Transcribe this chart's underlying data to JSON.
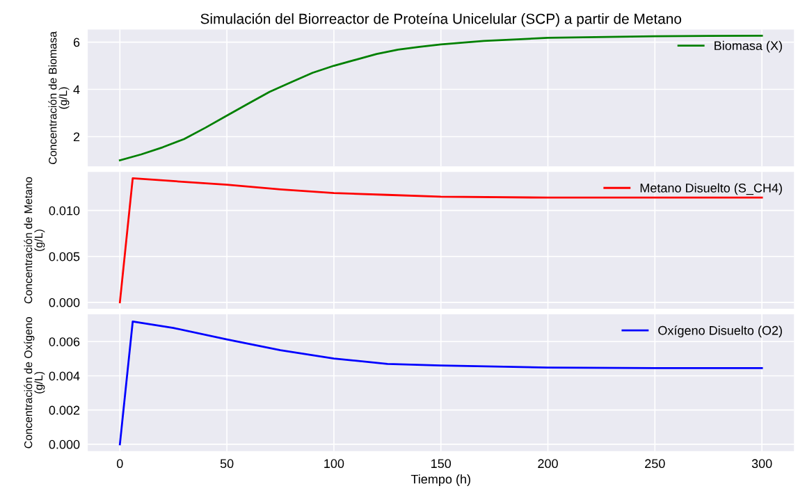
{
  "chart_data": [
    {
      "type": "line",
      "title": "Simulación del Biorreactor de Proteína Unicelular (SCP) a partir de Metano",
      "ylabel": "Concentración de Biomasa\n(g/L)",
      "x": [
        0,
        10,
        20,
        30,
        40,
        50,
        60,
        70,
        80,
        90,
        100,
        110,
        120,
        130,
        140,
        150,
        170,
        200,
        250,
        300
      ],
      "series": [
        {
          "name": "Biomasa (X)",
          "color": "#008000",
          "values": [
            1.0,
            1.25,
            1.55,
            1.9,
            2.38,
            2.89,
            3.4,
            3.9,
            4.3,
            4.7,
            5.0,
            5.25,
            5.5,
            5.68,
            5.8,
            5.9,
            6.05,
            6.18,
            6.25,
            6.27
          ]
        }
      ],
      "xlim": [
        -15,
        315
      ],
      "xticks": [
        0,
        50,
        100,
        150,
        200,
        250,
        300
      ],
      "ylim": [
        0.74,
        6.53
      ],
      "yticks": [
        2,
        4,
        6
      ],
      "tick_labels": "y",
      "grid": true,
      "legend": "top right"
    },
    {
      "type": "line",
      "ylabel": "Concentración de Metano\n(g/L)",
      "x": [
        0,
        6,
        25,
        50,
        75,
        100,
        125,
        150,
        200,
        250,
        300
      ],
      "series": [
        {
          "name": "Metano Disuelto (S_CH4)",
          "color": "#ff0000",
          "values": [
            0,
            0.0135,
            0.0132,
            0.0128,
            0.0123,
            0.0119,
            0.0117,
            0.0115,
            0.0114,
            0.0114,
            0.0114
          ]
        }
      ],
      "xlim": [
        -15,
        315
      ],
      "xticks": [
        0,
        50,
        100,
        150,
        200,
        250,
        300
      ],
      "ylim": [
        -0.0007,
        0.0142
      ],
      "yticks": [
        {
          "value": 0,
          "label": "0.000"
        },
        {
          "value": 0.005,
          "label": "0.005"
        },
        {
          "value": 0.01,
          "label": "0.010"
        }
      ],
      "tick_labels": "y",
      "grid": true,
      "legend": "top right"
    },
    {
      "type": "line",
      "ylabel": "Concentración de Oxígeno\n(g/L)",
      "xlabel": "Tiempo (h)",
      "x": [
        0,
        6,
        25,
        50,
        75,
        100,
        125,
        150,
        200,
        250,
        300
      ],
      "series": [
        {
          "name": "Oxígeno Disuelto (O2)",
          "color": "#0000ff",
          "values": [
            0,
            0.00717,
            0.0068,
            0.00613,
            0.0055,
            0.00501,
            0.0047,
            0.0046,
            0.00448,
            0.00445,
            0.00445
          ]
        }
      ],
      "xlim": [
        -15,
        315
      ],
      "xticks": [
        0,
        50,
        100,
        150,
        200,
        250,
        300
      ],
      "ylim": [
        -0.0004,
        0.0076
      ],
      "yticks": [
        {
          "value": 0,
          "label": "0.000"
        },
        {
          "value": 0.002,
          "label": "0.002"
        },
        {
          "value": 0.004,
          "label": "0.004"
        },
        {
          "value": 0.006,
          "label": "0.006"
        }
      ],
      "grid": true,
      "legend": "top right"
    }
  ]
}
